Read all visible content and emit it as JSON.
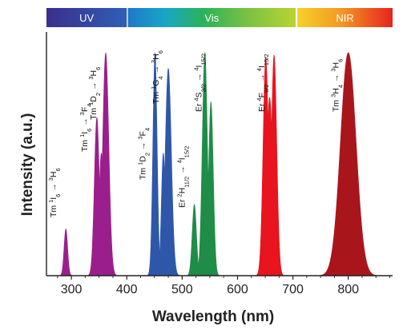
{
  "chart_data": {
    "type": "area",
    "xlabel": "Wavelength (nm)",
    "ylabel": "Intensity (a.u.)",
    "xlim": [
      255,
      880
    ],
    "ylim": [
      0,
      1.05
    ],
    "x_ticks": [
      300,
      400,
      500,
      600,
      700,
      800
    ],
    "y_ticks_labeled": false,
    "spectral_bands": [
      {
        "name": "UV",
        "from": 255,
        "to": 400
      },
      {
        "name": "Vis",
        "from": 402,
        "to": 705
      },
      {
        "name": "NIR",
        "from": 708,
        "to": 880
      }
    ],
    "series": [
      {
        "color": "#9a1f8c",
        "peaks": [
          {
            "center": 290,
            "height": 0.21,
            "width": 3.2
          },
          {
            "center": 346,
            "height": 0.71,
            "width": 4.5
          },
          {
            "center": 362,
            "height": 1.0,
            "width": 5.5
          },
          {
            "center": 354,
            "height": 0.55,
            "width": 4.0
          }
        ]
      },
      {
        "color": "#2e57aa",
        "peaks": [
          {
            "center": 451,
            "height": 1.0,
            "width": 3.8
          },
          {
            "center": 475,
            "height": 0.93,
            "width": 5.5
          },
          {
            "center": 466,
            "height": 0.55,
            "width": 3.5
          }
        ]
      },
      {
        "color": "#1f8c47",
        "peaks": [
          {
            "center": 522,
            "height": 0.32,
            "width": 3.8
          },
          {
            "center": 541,
            "height": 1.0,
            "width": 4.6
          },
          {
            "center": 552,
            "height": 0.78,
            "width": 4.2
          }
        ]
      },
      {
        "color": "#e8141e",
        "peaks": [
          {
            "center": 651,
            "height": 0.98,
            "width": 4.8
          },
          {
            "center": 666,
            "height": 0.99,
            "width": 4.8
          },
          {
            "center": 658,
            "height": 0.8,
            "width": 5.5
          }
        ]
      },
      {
        "color": "#a8161c",
        "peaks": [
          {
            "center": 800,
            "height": 1.0,
            "width": 14
          }
        ]
      }
    ],
    "annotations": [
      {
        "ion": "Tm",
        "upper": "1",
        "upper_sym": "I",
        "upper_sub": "6",
        "lower": "3",
        "lower_sym": "H",
        "lower_sub": "6",
        "at": 290
      },
      {
        "ion": "Tm",
        "upper": "1",
        "upper_sym": "I",
        "upper_sub": "6",
        "lower": "3",
        "lower_sym": "F",
        "lower_sub": "4",
        "at": 346
      },
      {
        "ion": "Tm",
        "upper": "1",
        "upper_sym": "D",
        "upper_sub": "2",
        "lower": "3",
        "lower_sym": "H",
        "lower_sub": "6",
        "at": 362
      },
      {
        "ion": "Tm",
        "upper": "1",
        "upper_sym": "D",
        "upper_sub": "2",
        "lower": "3",
        "lower_sym": "F",
        "lower_sub": "4",
        "at": 451
      },
      {
        "ion": "Tm",
        "upper": "1",
        "upper_sym": "G",
        "upper_sub": "4",
        "lower": "3",
        "lower_sym": "H",
        "lower_sub": "6",
        "at": 475
      },
      {
        "ion": "Er",
        "upper": "2",
        "upper_sym": "H",
        "upper_sub": "11/2",
        "lower": "4",
        "lower_sym": "I",
        "lower_sub": "15/2",
        "at": 522
      },
      {
        "ion": "Er",
        "upper": "4",
        "upper_sym": "S",
        "upper_sub": "3/2",
        "lower": "4",
        "lower_sym": "I",
        "lower_sub": "15/2",
        "at": 552
      },
      {
        "ion": "Er",
        "upper": "4",
        "upper_sym": "F",
        "upper_sub": "9/2",
        "lower": "4",
        "lower_sym": "I",
        "lower_sub": "15/2",
        "at": 666
      },
      {
        "ion": "Tm",
        "upper": "3",
        "upper_sym": "H",
        "upper_sub": "4",
        "lower": "3",
        "lower_sym": "H",
        "lower_sub": "6",
        "at": 800
      }
    ]
  }
}
